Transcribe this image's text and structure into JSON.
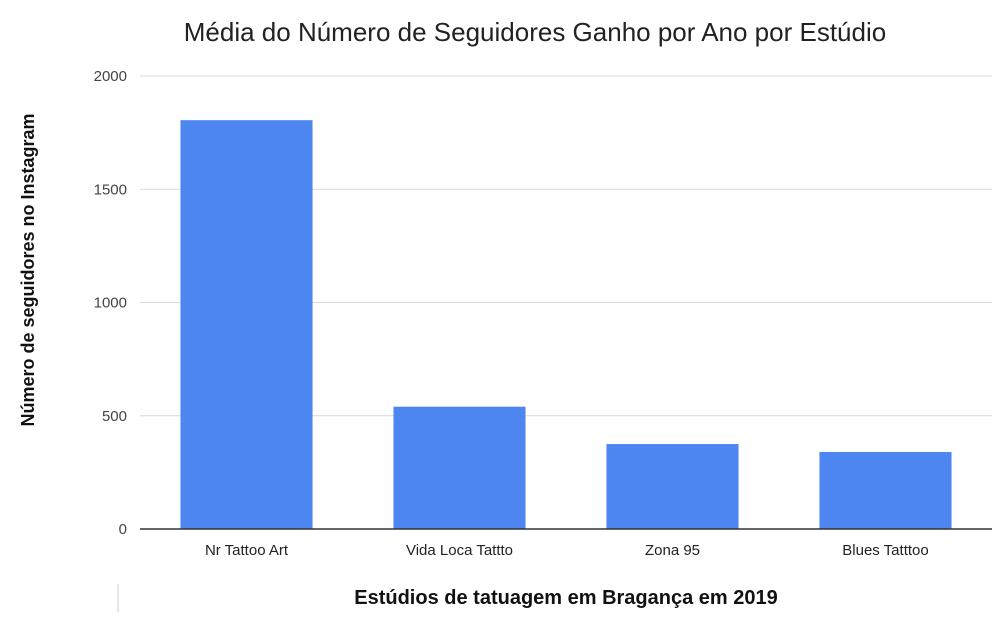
{
  "chart_data": {
    "type": "bar",
    "title": "Média do Número de Seguidores Ganho por Ano por Estúdio",
    "xlabel": "Estúdios de tatuagem em Bragança em 2019",
    "ylabel": "Número de seguidores no Instagram",
    "categories": [
      "Nr Tattoo Art",
      "Vida Loca Tattto",
      "Zona 95",
      "Blues Tatttoo"
    ],
    "values": [
      1805,
      540,
      375,
      340
    ],
    "ylim": [
      0,
      2000
    ],
    "yticks": [
      "0",
      "500",
      "1000",
      "1500",
      "2000"
    ],
    "grid": true,
    "legend": "none",
    "bar_color": "#4d86f0",
    "gridline_color": "#d9d9d9",
    "axis_color": "#333333"
  }
}
